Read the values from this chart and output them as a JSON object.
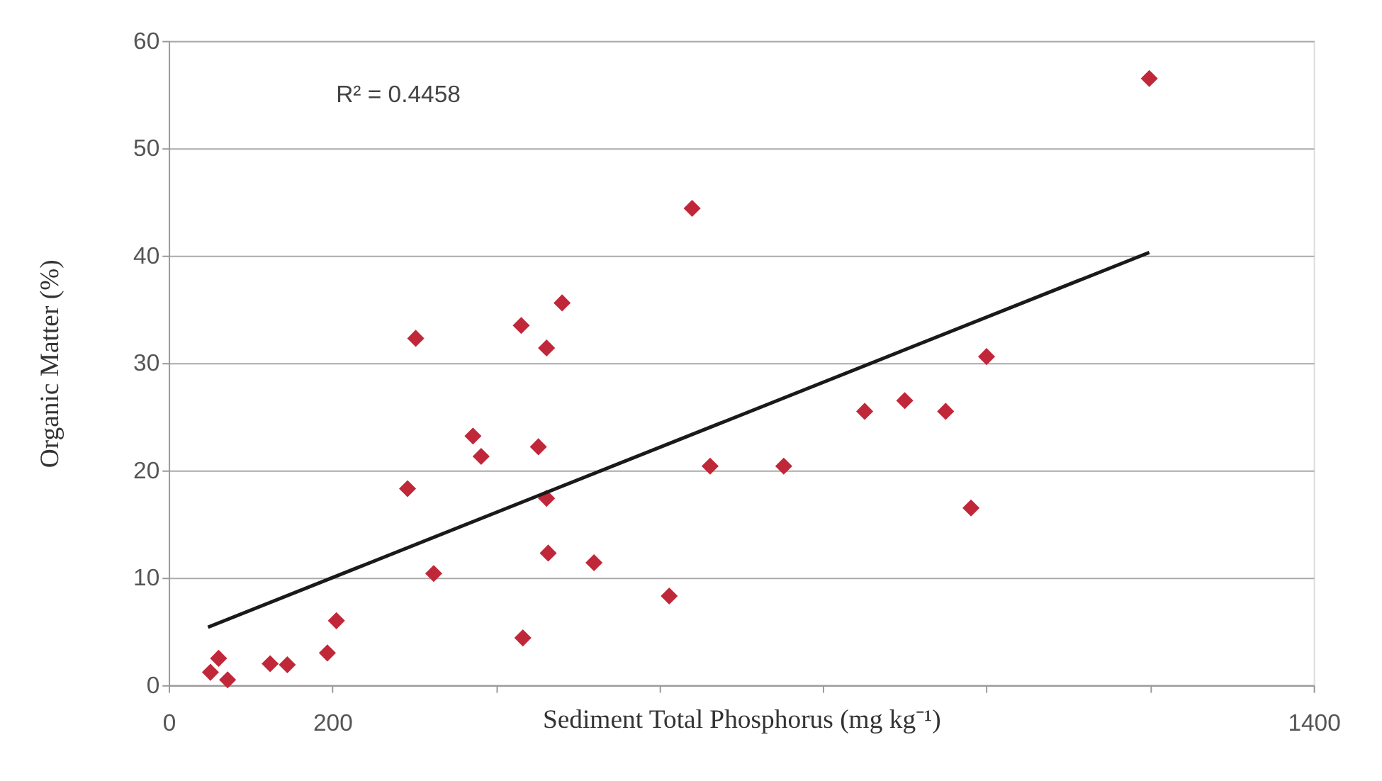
{
  "chart_data": {
    "type": "scatter",
    "xlabel": "Sediment Total Phosphorus (mg kg⁻¹)",
    "ylabel": "Organic Matter (%)",
    "annotations": [
      "R² = 0.4458"
    ],
    "xlim": [
      0,
      1400
    ],
    "ylim": [
      0,
      60
    ],
    "xticks": [
      0,
      200,
      {
        "value": 400,
        "label": null
      },
      {
        "value": 600,
        "label": null
      },
      {
        "value": 800,
        "label": null
      },
      {
        "value": 1000,
        "label": null
      },
      {
        "value": 1200,
        "label": null
      },
      1400
    ],
    "yticks": [
      0,
      10,
      20,
      30,
      40,
      50,
      60
    ],
    "grid": "y",
    "marker": "diamond",
    "series": [
      {
        "color": "#c0283a",
        "x": [
          51,
          61,
          72,
          124,
          145,
          194,
          205,
          292,
          302,
          324,
          372,
          382,
          433,
          431,
          462,
          452,
          462,
          464,
          481,
          520,
          612,
          640,
          662,
          752,
          851,
          900,
          950,
          981,
          1000,
          1199
        ],
        "values": [
          1.2,
          2.5,
          0.5,
          2.0,
          1.9,
          3.0,
          6.0,
          18.3,
          32.3,
          10.4,
          23.2,
          21.3,
          4.4,
          33.5,
          31.4,
          22.2,
          17.4,
          12.3,
          35.6,
          11.4,
          8.3,
          44.4,
          20.4,
          20.4,
          25.5,
          26.5,
          25.5,
          16.5,
          30.6,
          56.5
        ]
      },
      {
        "type": "line",
        "color": "#1a1a1a",
        "line_style": "solid",
        "marker": "none",
        "x": [
          48,
          1199
        ],
        "values": [
          5.4,
          40.3
        ]
      }
    ]
  }
}
